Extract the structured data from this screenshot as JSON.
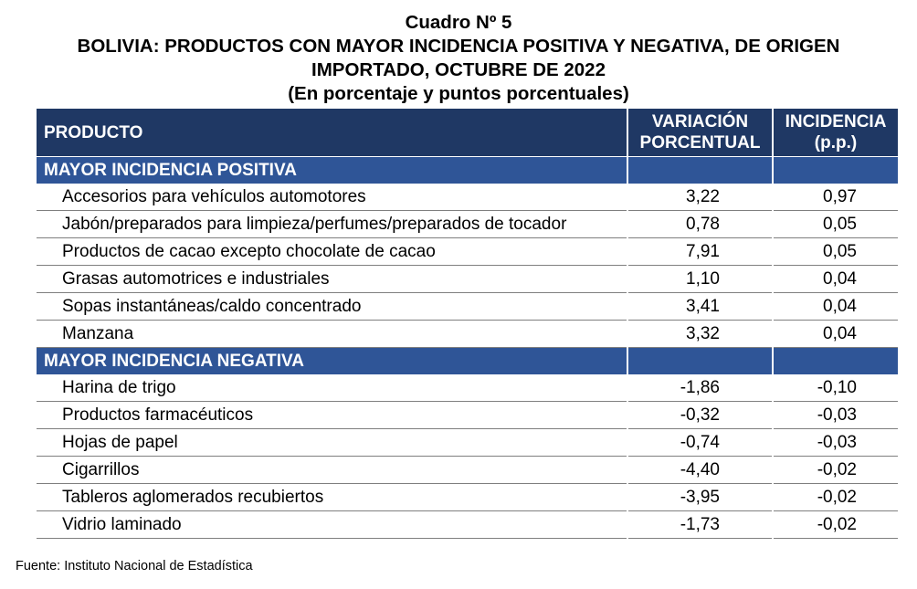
{
  "header": {
    "line1": "Cuadro Nº 5",
    "line2": "BOLIVIA: PRODUCTOS CON MAYOR INCIDENCIA POSITIVA Y NEGATIVA, DE ORIGEN",
    "line3": "IMPORTADO, OCTUBRE DE 2022",
    "line4": "(En porcentaje y puntos porcentuales)"
  },
  "table": {
    "columns": {
      "product": "PRODUCTO",
      "variation_line1": "VARIACIÓN",
      "variation_line2": "PORCENTUAL",
      "incidence_line1": "INCIDENCIA",
      "incidence_line2": "(p.p.)"
    },
    "sections": [
      {
        "title": "MAYOR INCIDENCIA POSITIVA",
        "rows": [
          {
            "product": "Accesorios para vehículos automotores",
            "variation": "3,22",
            "incidence": "0,97"
          },
          {
            "product": "Jabón/preparados para limpieza/perfumes/preparados de tocador",
            "variation": "0,78",
            "incidence": "0,05"
          },
          {
            "product": "Productos de cacao excepto chocolate de cacao",
            "variation": "7,91",
            "incidence": "0,05"
          },
          {
            "product": "Grasas automotrices e industriales",
            "variation": "1,10",
            "incidence": "0,04"
          },
          {
            "product": "Sopas instantáneas/caldo concentrado",
            "variation": "3,41",
            "incidence": "0,04"
          },
          {
            "product": "Manzana",
            "variation": "3,32",
            "incidence": "0,04"
          }
        ]
      },
      {
        "title": "MAYOR INCIDENCIA NEGATIVA",
        "rows": [
          {
            "product": "Harina de trigo",
            "variation": "-1,86",
            "incidence": "-0,10"
          },
          {
            "product": "Productos farmacéuticos",
            "variation": "-0,32",
            "incidence": "-0,03"
          },
          {
            "product": "Hojas de papel",
            "variation": "-0,74",
            "incidence": "-0,03"
          },
          {
            "product": "Cigarrillos",
            "variation": "-4,40",
            "incidence": "-0,02"
          },
          {
            "product": "Tableros aglomerados recubiertos",
            "variation": "-3,95",
            "incidence": "-0,02"
          },
          {
            "product": "Vidrio laminado",
            "variation": "-1,73",
            "incidence": "-0,02"
          }
        ]
      }
    ]
  },
  "footer": {
    "source": "Fuente: Instituto Nacional de Estadística"
  },
  "colors": {
    "header_bg": "#1f3864",
    "section_bg": "#2f5597",
    "row_rule": "#7f7f7f"
  }
}
